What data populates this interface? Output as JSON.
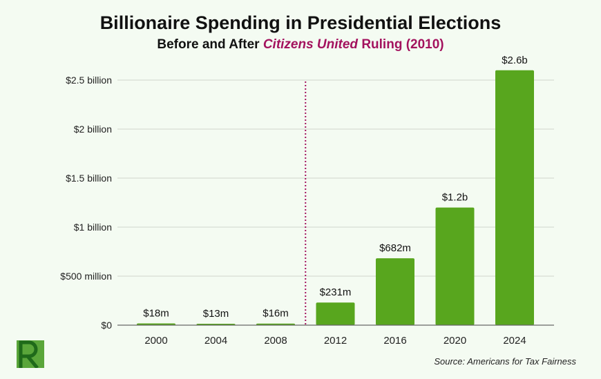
{
  "colors": {
    "bar": "#58a61e",
    "accent": "#a3125e",
    "grid": "#cfd6cc",
    "background": "#f4fbf2"
  },
  "chart_data": {
    "type": "bar",
    "title": "Billionaire Spending in Presidential Elections",
    "subtitle": {
      "prefix": "Before and After ",
      "emphasis": "Citizens United",
      "suffix": " Ruling (2010)"
    },
    "categories": [
      "2000",
      "2004",
      "2008",
      "2012",
      "2016",
      "2020",
      "2024"
    ],
    "values": [
      0.018,
      0.013,
      0.016,
      0.231,
      0.682,
      1.2,
      2.6
    ],
    "data_labels": [
      "$18m",
      "$13m",
      "$16m",
      "$231m",
      "$682m",
      "$1.2b",
      "$2.6b"
    ],
    "yticks": [
      0,
      0.5,
      1,
      1.5,
      2,
      2.5
    ],
    "ytick_labels": [
      "$0",
      "$500 million",
      "$1 billion",
      "$1.5 billion",
      "$2 billion",
      "$2.5 billion"
    ],
    "ylim": [
      0,
      2.6
    ],
    "unit": "billion USD",
    "grid": true,
    "annotation": {
      "type": "vertical-dotted-line",
      "between": [
        "2008",
        "2012"
      ]
    }
  },
  "source": "Source: Americans for Tax Fairness",
  "logo": {
    "letter": "R"
  }
}
